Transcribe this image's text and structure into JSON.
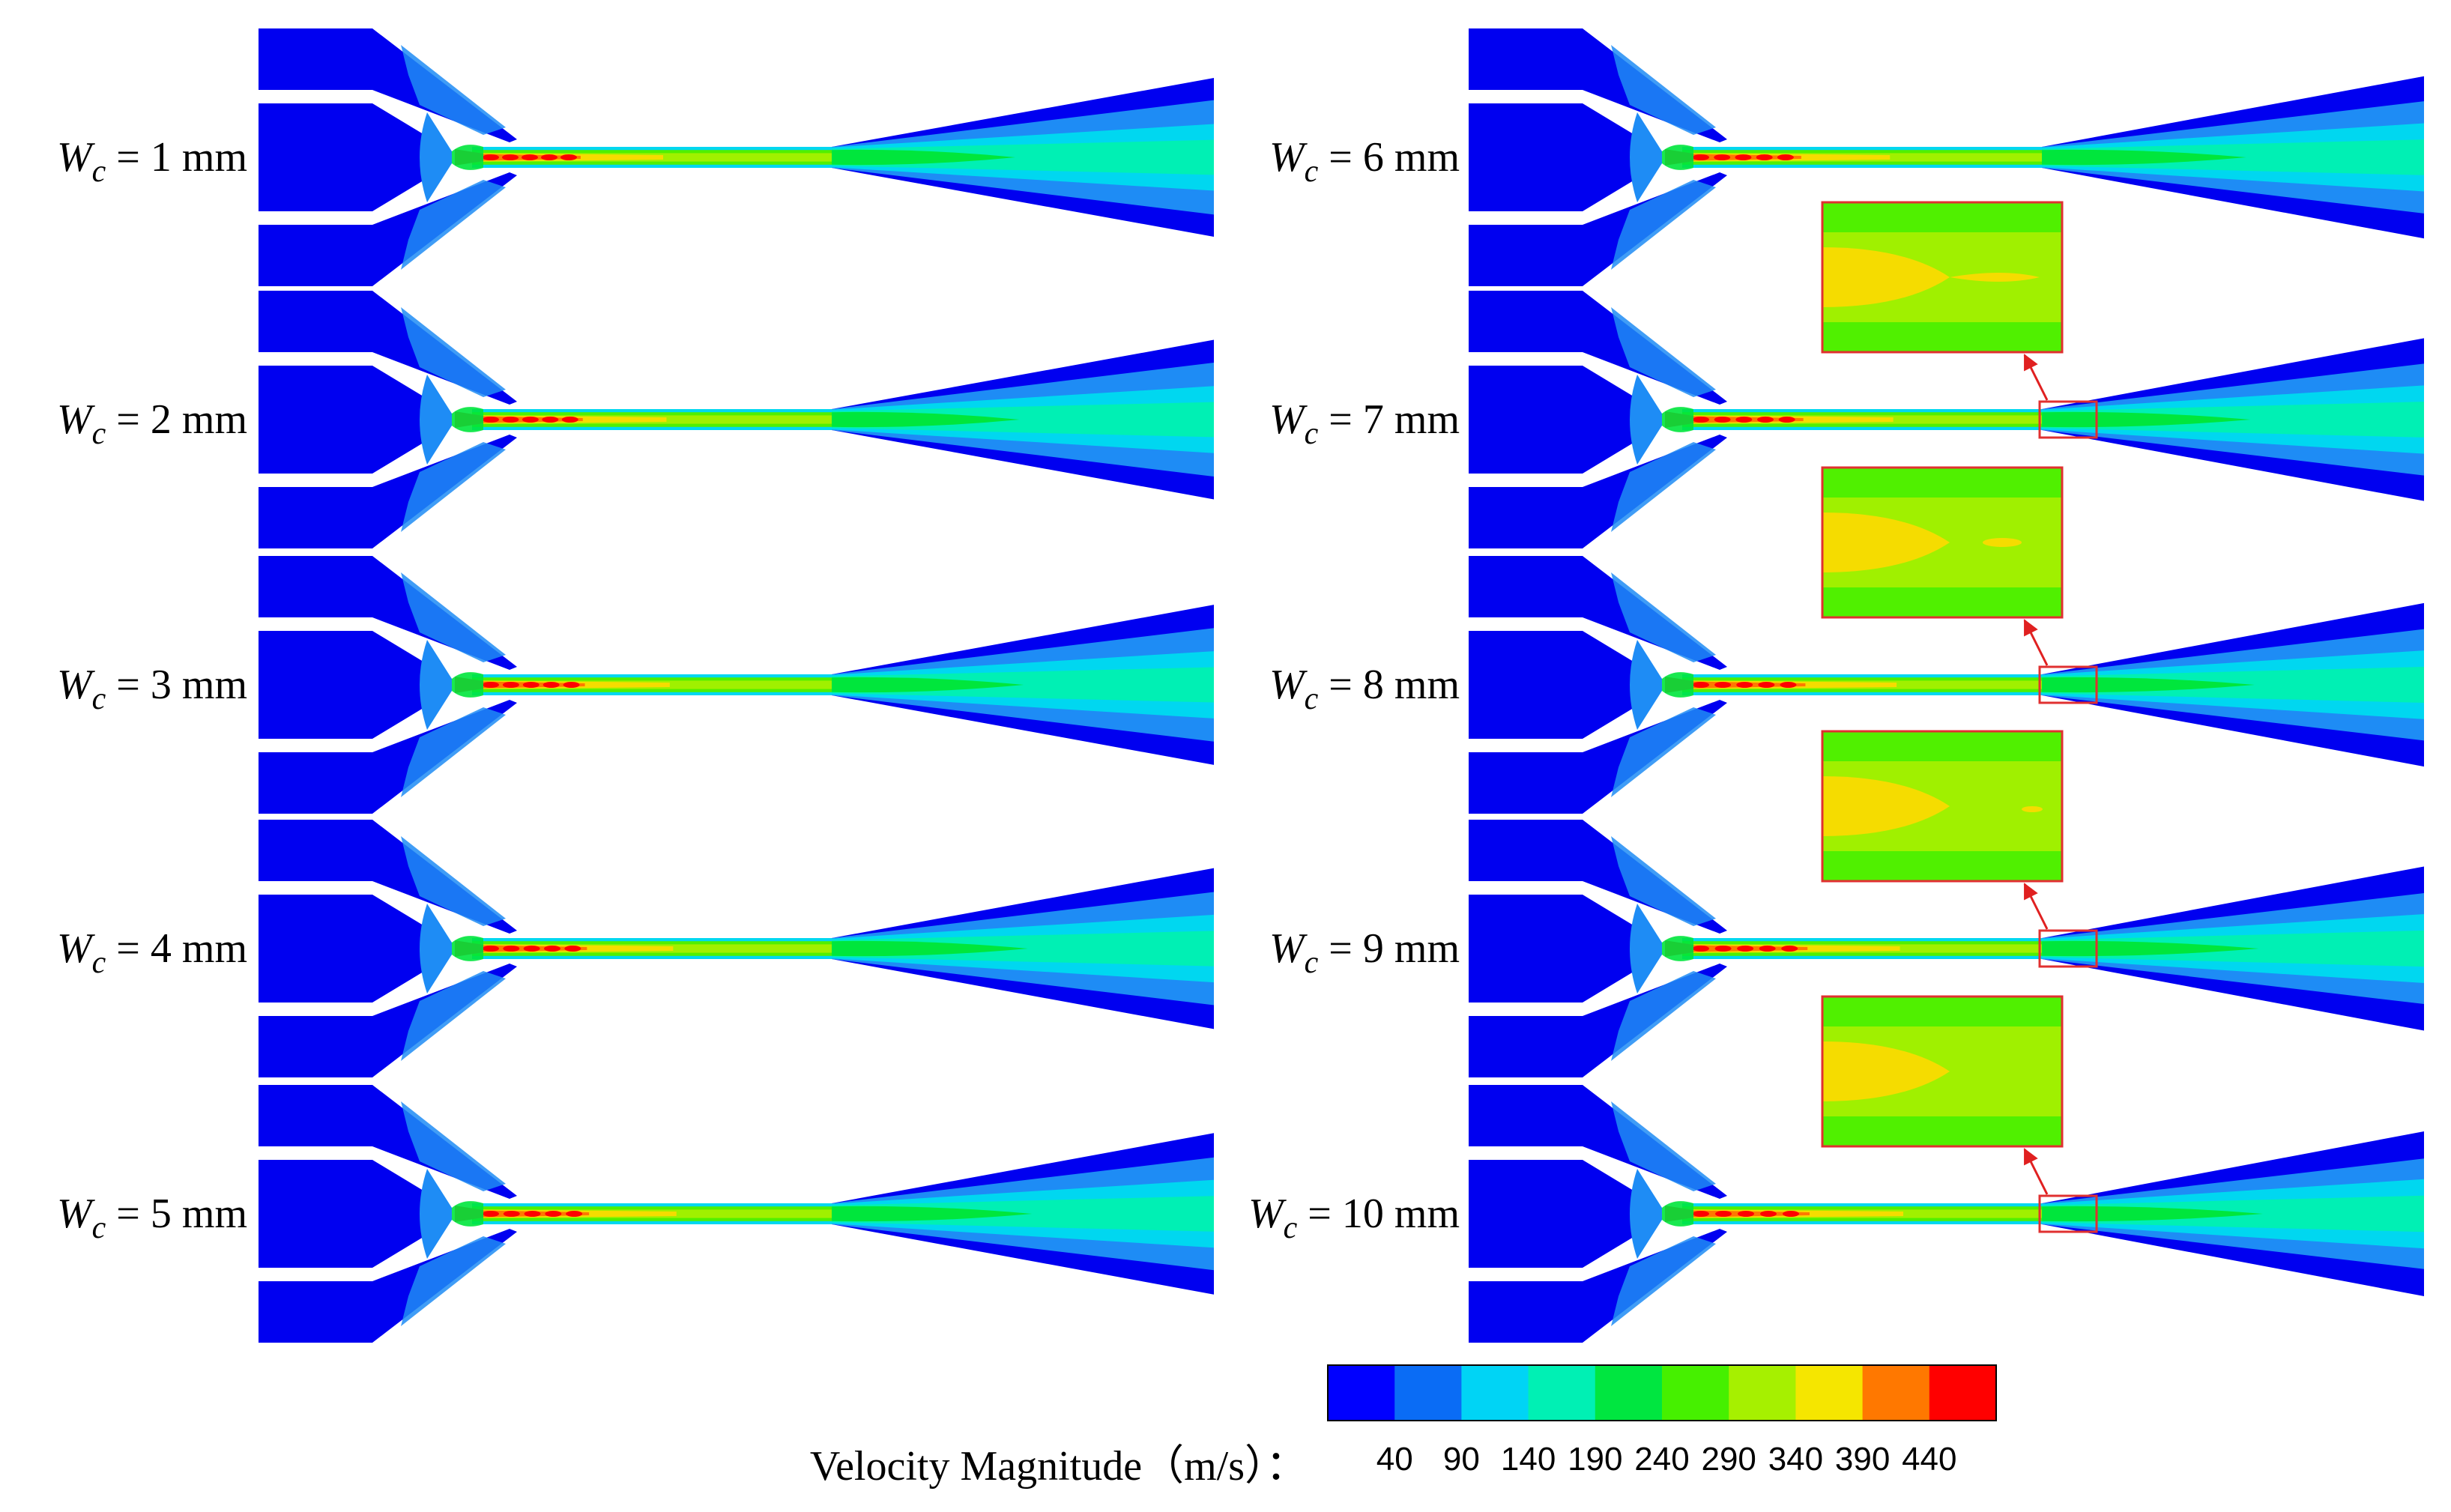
{
  "symbol": "W",
  "subscript": "c",
  "cases": [
    {
      "eq": " = 1 mm",
      "zoom": false
    },
    {
      "eq": " = 2 mm",
      "zoom": false
    },
    {
      "eq": " = 3 mm",
      "zoom": false
    },
    {
      "eq": " = 4 mm",
      "zoom": false
    },
    {
      "eq": " = 5 mm",
      "zoom": false
    },
    {
      "eq": " = 6 mm",
      "zoom": false
    },
    {
      "eq": " = 7 mm",
      "zoom": true
    },
    {
      "eq": " = 8 mm",
      "zoom": true
    },
    {
      "eq": " = 9 mm",
      "zoom": true
    },
    {
      "eq": " = 10 mm",
      "zoom": true
    }
  ],
  "colorbar": {
    "title": "Velocity Magnitude（m/s）：",
    "ticks": [
      "40",
      "90",
      "140",
      "190",
      "240",
      "290",
      "340",
      "390",
      "440"
    ],
    "colors": [
      "#0000ff",
      "#0a6cf5",
      "#00d4f5",
      "#00f0b4",
      "#00e640",
      "#46f000",
      "#a6f000",
      "#f5e600",
      "#ff7800",
      "#ff0000"
    ]
  },
  "field_colors": {
    "outer": "#0000f0",
    "ring1": "#0a5af0",
    "ring2": "#1e8cf5",
    "cyan": "#00d7f0",
    "teal": "#00f0b4",
    "green": "#00e63c",
    "lime": "#50f000",
    "yellow_green": "#a0f000",
    "yellow": "#f5dc00",
    "orange": "#ff7800",
    "red": "#ff0000",
    "frame": "#e03030"
  }
}
